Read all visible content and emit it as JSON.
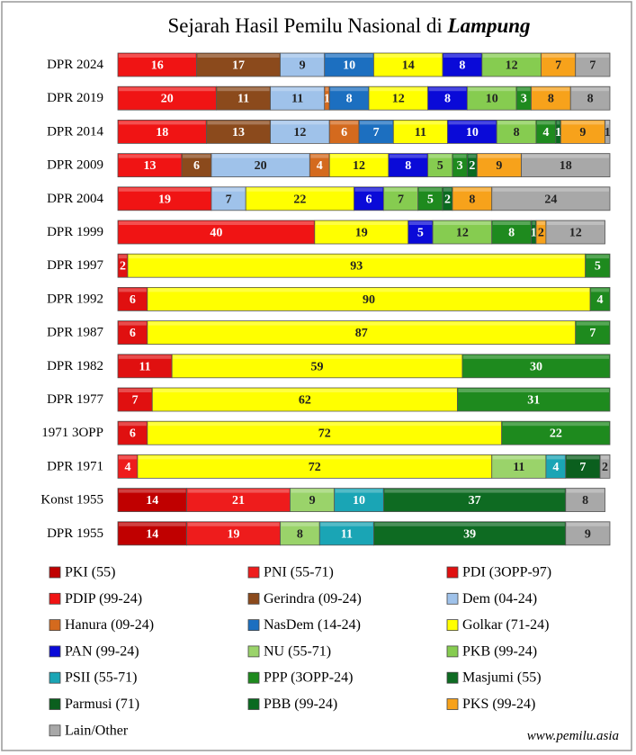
{
  "chart_data": {
    "type": "stacked-bar",
    "orientation": "horizontal",
    "title": "Sejarah Hasil Pemilu Nasional di",
    "title_place": "Lampung",
    "source": "www.pemilu.asia",
    "xlim": [
      0,
      100
    ],
    "categories": [
      "DPR 2024",
      "DPR 2019",
      "DPR 2014",
      "DPR 2009",
      "DPR 2004",
      "DPR 1999",
      "DPR 1997",
      "DPR 1992",
      "DPR 1987",
      "DPR 1982",
      "DPR 1977",
      "1971 3OPP",
      "DPR 1971",
      "Konst 1955",
      "DPR 1955"
    ],
    "series": [
      {
        "name": "PKI (55)",
        "color": "#c00000",
        "values": [
          null,
          null,
          null,
          null,
          null,
          null,
          null,
          null,
          null,
          null,
          null,
          null,
          null,
          14,
          14
        ]
      },
      {
        "name": "PNI (55-71)",
        "color": "#ee1c1c",
        "values": [
          null,
          null,
          null,
          null,
          null,
          null,
          null,
          null,
          null,
          null,
          null,
          null,
          4,
          21,
          19
        ]
      },
      {
        "name": "PDI (3OPP-97)",
        "color": "#e01010",
        "values": [
          null,
          null,
          null,
          null,
          null,
          null,
          2,
          6,
          6,
          11,
          7,
          6,
          null,
          null,
          null
        ]
      },
      {
        "name": "PDIP (99-24)",
        "color": "#f01414",
        "values": [
          16,
          20,
          18,
          13,
          19,
          40,
          null,
          null,
          null,
          null,
          null,
          null,
          null,
          null,
          null
        ]
      },
      {
        "name": "Gerindra (09-24)",
        "color": "#8b4a1c",
        "values": [
          17,
          11,
          13,
          6,
          null,
          null,
          null,
          null,
          null,
          null,
          null,
          null,
          null,
          null,
          null
        ]
      },
      {
        "name": "Dem (04-24)",
        "color": "#9fc2ea",
        "values": [
          9,
          11,
          12,
          20,
          7,
          null,
          null,
          null,
          null,
          null,
          null,
          null,
          null,
          null,
          null
        ]
      },
      {
        "name": "Hanura (09-24)",
        "color": "#d46a1e",
        "values": [
          null,
          1,
          6,
          4,
          null,
          null,
          null,
          null,
          null,
          null,
          null,
          null,
          null,
          null,
          null
        ]
      },
      {
        "name": "NasDem (14-24)",
        "color": "#1c6fc0",
        "values": [
          10,
          8,
          7,
          null,
          null,
          null,
          null,
          null,
          null,
          null,
          null,
          null,
          null,
          null,
          null
        ]
      },
      {
        "name": "Golkar (71-24)",
        "color": "#ffff00",
        "values": [
          14,
          12,
          11,
          12,
          22,
          19,
          93,
          90,
          87,
          59,
          62,
          72,
          72,
          null,
          null
        ]
      },
      {
        "name": "PAN (99-24)",
        "color": "#0a0ad8",
        "values": [
          8,
          8,
          10,
          8,
          6,
          5,
          null,
          null,
          null,
          null,
          null,
          null,
          null,
          null,
          null
        ]
      },
      {
        "name": "NU (55-71)",
        "color": "#9ad36a",
        "values": [
          null,
          null,
          null,
          null,
          null,
          null,
          null,
          null,
          null,
          null,
          null,
          null,
          11,
          9,
          8
        ]
      },
      {
        "name": "PKB (99-24)",
        "color": "#86cc50",
        "values": [
          12,
          10,
          8,
          5,
          7,
          12,
          null,
          null,
          null,
          null,
          null,
          null,
          null,
          null,
          null
        ]
      },
      {
        "name": "PSII (55-71)",
        "color": "#1aa5b5",
        "values": [
          null,
          null,
          null,
          null,
          null,
          null,
          null,
          null,
          null,
          null,
          null,
          null,
          4,
          10,
          11
        ]
      },
      {
        "name": "PPP (3OPP-24)",
        "color": "#1e8a1e",
        "values": [
          null,
          3,
          4,
          3,
          5,
          8,
          5,
          4,
          7,
          30,
          31,
          22,
          null,
          null,
          null
        ]
      },
      {
        "name": "Masjumi (55)",
        "color": "#0e6b22",
        "values": [
          null,
          null,
          null,
          null,
          null,
          null,
          null,
          null,
          null,
          null,
          null,
          null,
          null,
          37,
          39
        ]
      },
      {
        "name": "Parmusi (71)",
        "color": "#0b5f1e",
        "values": [
          null,
          null,
          null,
          null,
          null,
          null,
          null,
          null,
          null,
          null,
          null,
          null,
          7,
          null,
          null
        ]
      },
      {
        "name": "PBB (99-24)",
        "color": "#0a6a20",
        "values": [
          null,
          null,
          1,
          2,
          2,
          1,
          null,
          null,
          null,
          null,
          null,
          null,
          null,
          null,
          null
        ]
      },
      {
        "name": "PKS (99-24)",
        "color": "#f7a21b",
        "values": [
          7,
          8,
          9,
          9,
          8,
          2,
          null,
          null,
          null,
          null,
          null,
          null,
          null,
          null,
          null
        ]
      },
      {
        "name": "Lain/Other",
        "color": "#a8a8a8",
        "values": [
          7,
          8,
          1,
          18,
          24,
          12,
          null,
          null,
          null,
          null,
          null,
          null,
          2,
          8,
          9
        ]
      }
    ]
  }
}
